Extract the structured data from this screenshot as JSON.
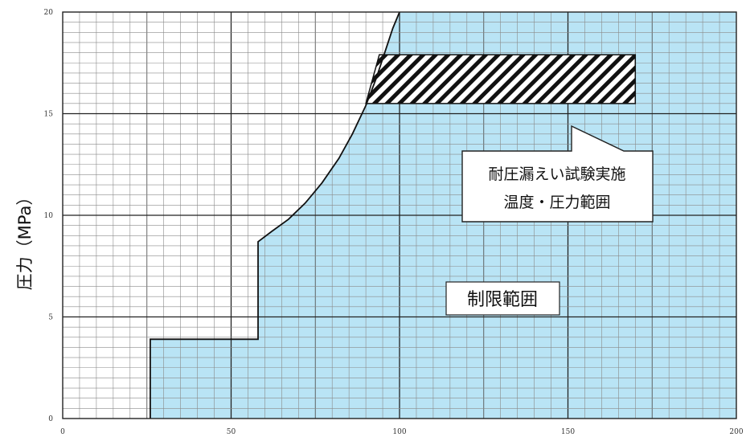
{
  "chart_data": {
    "type": "area",
    "title": "",
    "xlabel": "",
    "ylabel": "圧力（MPa）",
    "xlim": [
      0,
      200
    ],
    "ylim": [
      0,
      20
    ],
    "xticks": [
      0,
      50,
      100,
      150,
      200
    ],
    "yticks": [
      0,
      5,
      10,
      15,
      20
    ],
    "tick_labels": {
      "x": [
        "0",
        "50",
        "100",
        "150",
        "200"
      ],
      "y": [
        "0",
        "5",
        "10",
        "15",
        "20"
      ]
    },
    "grid": true,
    "series": [
      {
        "name": "制限範囲",
        "color": "#b9e4f5",
        "boundary": [
          {
            "x": 26,
            "y": 0
          },
          {
            "x": 26,
            "y": 3.9
          },
          {
            "x": 58,
            "y": 3.9
          },
          {
            "x": 58,
            "y": 8.7
          },
          {
            "x": 62,
            "y": 9.2
          },
          {
            "x": 67,
            "y": 9.8
          },
          {
            "x": 72,
            "y": 10.6
          },
          {
            "x": 77,
            "y": 11.6
          },
          {
            "x": 82,
            "y": 12.8
          },
          {
            "x": 86,
            "y": 14.0
          },
          {
            "x": 90,
            "y": 15.4
          },
          {
            "x": 93,
            "y": 16.7
          },
          {
            "x": 96,
            "y": 18.2
          },
          {
            "x": 98,
            "y": 19.2
          },
          {
            "x": 100,
            "y": 20
          }
        ]
      }
    ],
    "hatched_region": {
      "label": "耐圧漏えい試験実施温度・圧力範囲",
      "x": [
        90,
        170
      ],
      "y": [
        15.5,
        17.9
      ]
    },
    "annotations": {
      "callout_line1": "耐圧漏えい試験実施",
      "callout_line2": "温度・圧力範囲",
      "region_label": "制限範囲"
    }
  }
}
